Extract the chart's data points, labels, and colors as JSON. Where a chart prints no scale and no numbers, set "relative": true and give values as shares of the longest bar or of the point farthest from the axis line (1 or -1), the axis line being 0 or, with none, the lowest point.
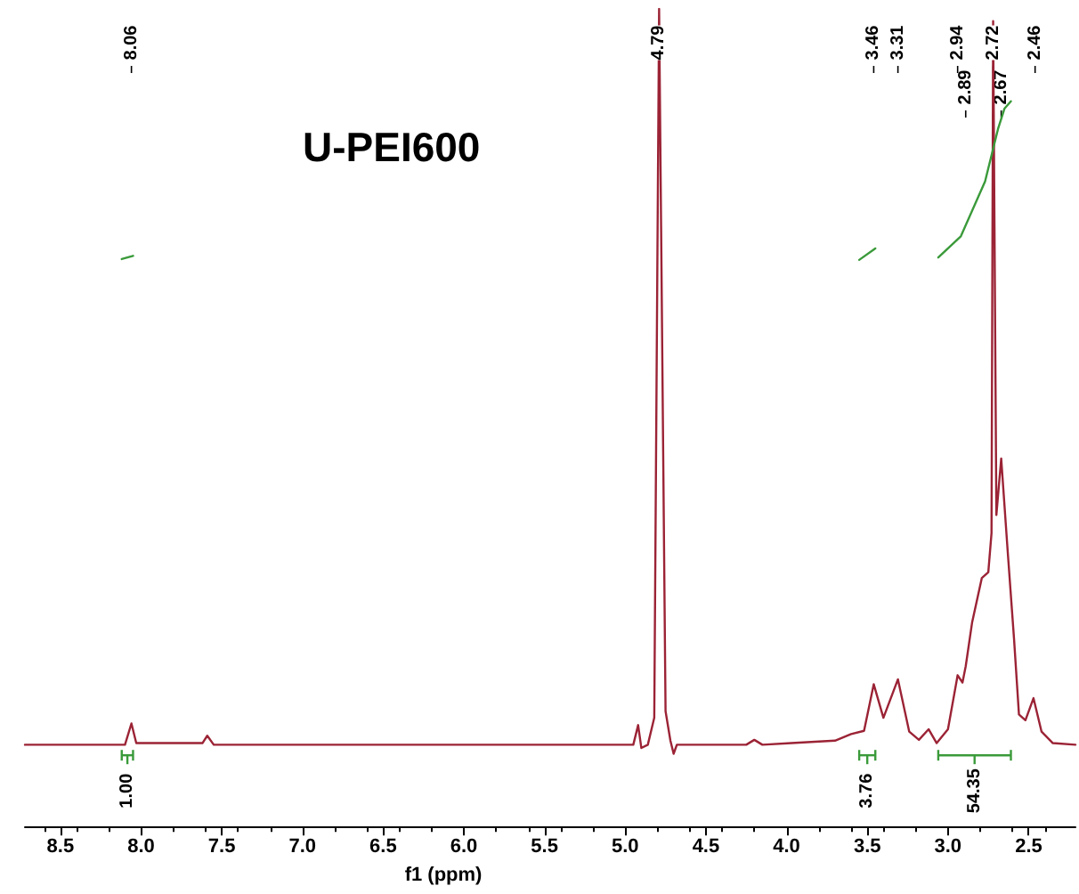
{
  "chart_data": {
    "type": "line",
    "relative": true,
    "title": "U-PEI600",
    "xlabel": "f1 (ppm)",
    "xlim": [
      8.72,
      2.21
    ],
    "xticks": [
      {
        "value": 8.5,
        "label": "8.5"
      },
      {
        "value": 8,
        "label": "8.0"
      },
      {
        "value": 7.5,
        "label": "7.5"
      },
      {
        "value": 7,
        "label": "7.0"
      },
      {
        "value": 6.5,
        "label": "6.5"
      },
      {
        "value": 6,
        "label": "6.0"
      },
      {
        "value": 5.5,
        "label": "5.5"
      },
      {
        "value": 5,
        "label": "5.0"
      },
      {
        "value": 4.5,
        "label": "4.5"
      },
      {
        "value": 4,
        "label": "4.0"
      },
      {
        "value": 3.5,
        "label": "3.5"
      },
      {
        "value": 3,
        "label": "3.0"
      },
      {
        "value": 2.5,
        "label": "2.5"
      }
    ],
    "grid": false,
    "marker": "none",
    "line_style": "solid",
    "series": [
      {
        "color": "#9b2335",
        "x": [
          8.72,
          8.1,
          8.06,
          8.03,
          7.62,
          7.59,
          7.55,
          4.95,
          4.92,
          4.9,
          4.86,
          4.82,
          4.79,
          4.75,
          4.72,
          4.7,
          4.68,
          4.25,
          4.2,
          4.15,
          3.97,
          3.7,
          3.6,
          3.52,
          3.46,
          3.4,
          3.31,
          3.24,
          3.18,
          3.12,
          3.07,
          3,
          2.94,
          2.91,
          2.89,
          2.85,
          2.79,
          2.75,
          2.73,
          2.72,
          2.7,
          2.67,
          2.63,
          2.59,
          2.56,
          2.52,
          2.47,
          2.42,
          2.35,
          2.21
        ],
        "values": [
          0.1,
          0.1,
          0.126,
          0.102,
          0.102,
          0.111,
          0.1,
          0.1,
          0.124,
          0.096,
          0.1,
          0.133,
          1,
          0.141,
          0.105,
          0.089,
          0.1,
          0.1,
          0.106,
          0.1,
          0.102,
          0.105,
          0.113,
          0.117,
          0.174,
          0.133,
          0.18,
          0.116,
          0.106,
          0.119,
          0.102,
          0.119,
          0.185,
          0.176,
          0.196,
          0.25,
          0.304,
          0.311,
          0.359,
          0.985,
          0.381,
          0.45,
          0.337,
          0.228,
          0.137,
          0.13,
          0.157,
          0.116,
          0.102,
          0.1
        ]
      },
      {
        "color": "#3a9a3a",
        "x": [
          8.12,
          8.05,
          8.0,
          3.55,
          3.45,
          3.3,
          3.06,
          2.92,
          2.77,
          2.69,
          2.65,
          2.61
        ],
        "values": [
          0.694,
          0.698,
          null,
          0.693,
          0.707,
          null,
          0.696,
          0.722,
          0.789,
          0.853,
          0.878,
          0.887
        ]
      }
    ],
    "annotations": [
      {
        "text": "8.06",
        "x": 8.06
      },
      {
        "text": "4.79",
        "x": 4.79
      },
      {
        "text": "3.46",
        "x": 3.46
      },
      {
        "text": "3.31",
        "x": 3.31
      },
      {
        "text": "2.94",
        "x": 2.94
      },
      {
        "text": "2.89",
        "x": 2.89
      },
      {
        "text": "2.72",
        "x": 2.72
      },
      {
        "text": "2.67",
        "x": 2.67
      },
      {
        "text": "2.46",
        "x": 2.46
      },
      "1.00",
      "3.76",
      "54.35"
    ]
  }
}
